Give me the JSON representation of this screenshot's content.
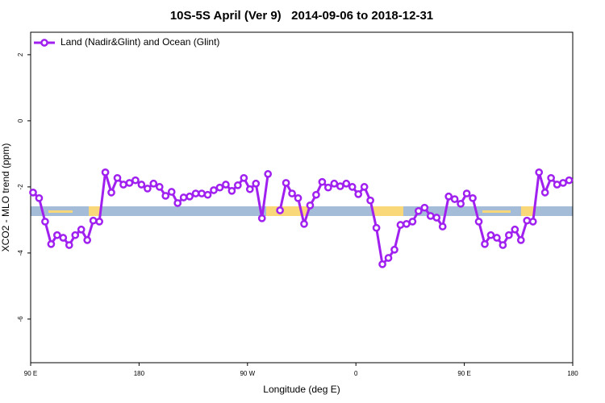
{
  "chart_data": {
    "type": "line",
    "title": "10S-5S April (Ver 9)   2014-09-06 to 2018-12-31",
    "xlabel": "Longitude (deg E)",
    "ylabel": "XCO2 - MLO trend (ppm)",
    "xlim": [
      90,
      540
    ],
    "ylim": [
      -7.32,
      2.68
    ],
    "xticks": [
      {
        "value": 90,
        "label": "90 E"
      },
      180,
      {
        "value": 270,
        "label": "90 W"
      },
      {
        "value": 360,
        "label": "0"
      },
      {
        "value": 450,
        "label": "90 E"
      },
      {
        "value": 540,
        "label": "180"
      }
    ],
    "yticks": [
      2,
      0,
      -2,
      -4,
      -6
    ],
    "grid": false,
    "legend": "top-left",
    "x": [
      92,
      97,
      102,
      107,
      112,
      117,
      122,
      127,
      132,
      137,
      142,
      147,
      152,
      157,
      162,
      167,
      172,
      177,
      182,
      187,
      192,
      197,
      202,
      207,
      212,
      217,
      222,
      227,
      232,
      237,
      242,
      247,
      252,
      257,
      262,
      267,
      272,
      277,
      282,
      287,
      292,
      297,
      302,
      307,
      312,
      317,
      322,
      327,
      332,
      337,
      342,
      347,
      352,
      357,
      362,
      367,
      372,
      377,
      382,
      387,
      392,
      397,
      402,
      407,
      412,
      417,
      422,
      427,
      432,
      437,
      442,
      447,
      452,
      457,
      462,
      467,
      472,
      477,
      482,
      487,
      492,
      497,
      502,
      507,
      512,
      517,
      522,
      527,
      532,
      537
    ],
    "series": [
      {
        "name": "Land (Nadir&Glint) and Ocean (Glint)",
        "color": "#a020f0",
        "values": [
          -2.17,
          -2.34,
          -3.05,
          -3.73,
          -3.46,
          -3.54,
          -3.76,
          -3.46,
          -3.29,
          -3.61,
          -3.02,
          -3.05,
          -1.56,
          -2.17,
          -1.73,
          -1.93,
          -1.88,
          -1.8,
          -1.93,
          -2.05,
          -1.9,
          -2.0,
          -2.27,
          -2.15,
          -2.49,
          -2.32,
          -2.29,
          -2.2,
          -2.2,
          -2.24,
          -2.1,
          -2.02,
          -1.93,
          -2.12,
          -1.95,
          -1.73,
          -2.07,
          -1.9,
          -2.95,
          -1.61,
          null,
          -2.71,
          -1.88,
          -2.2,
          -2.34,
          -3.12,
          -2.56,
          -2.24,
          -1.85,
          -2.02,
          -1.9,
          -1.98,
          -1.9,
          -2.0,
          -2.22,
          -2.0,
          -2.41,
          -3.24,
          -4.34,
          -4.15,
          -3.9,
          -3.15,
          -3.12,
          -3.05,
          -2.73,
          -2.63,
          -2.88,
          -2.93,
          -3.2,
          -2.29,
          -2.37,
          -2.51,
          -2.2,
          -2.34,
          -3.05,
          -3.73,
          -3.46,
          -3.54,
          -3.76,
          -3.46,
          -3.29,
          -3.61,
          -3.02,
          -3.05,
          -1.56,
          -2.17,
          -1.73,
          -1.93,
          -1.88,
          -1.8
        ]
      }
    ]
  }
}
